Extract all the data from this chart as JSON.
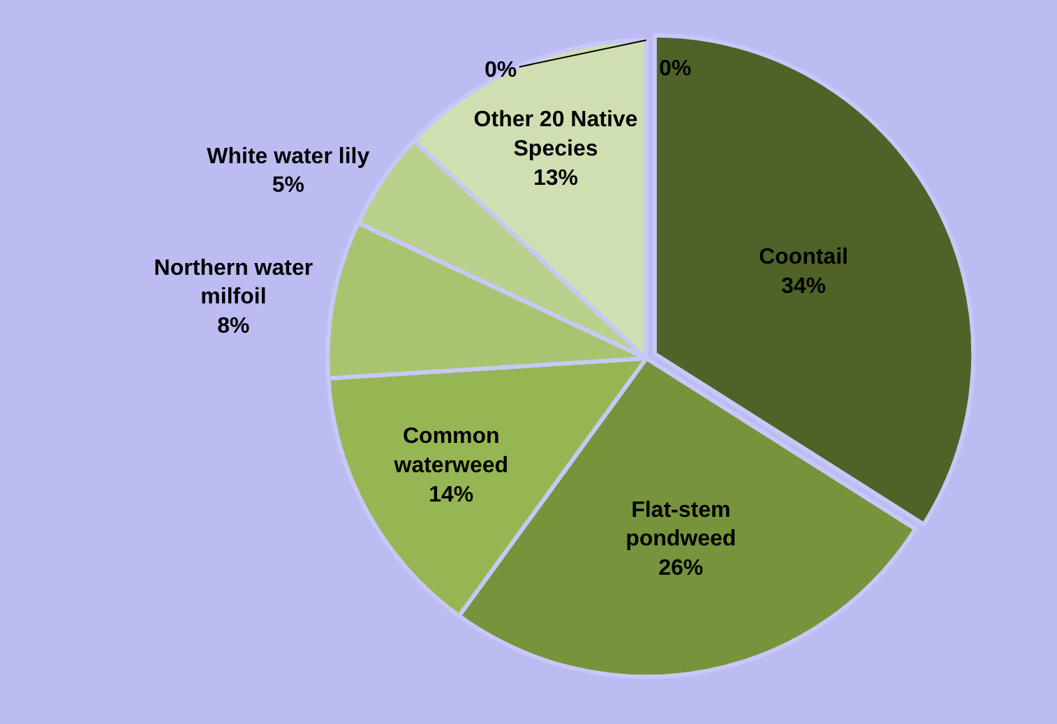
{
  "chart_data": {
    "type": "pie",
    "categories": [
      null,
      "Coontail",
      "Flat-stem\npondweed",
      "Common\nwaterweed",
      "Northern water\nmilfoil",
      "White water lily",
      "Other 20 Native\nSpecies",
      null
    ],
    "values": [
      0,
      34,
      26,
      14,
      8,
      5,
      13,
      0
    ],
    "value_labels": [
      "0%",
      "34%",
      "26%",
      "14%",
      "8%",
      "5%",
      "13%",
      "0%"
    ],
    "colors": [
      "#dfe8cc",
      "#4f6228",
      "#77933c",
      "#96b653",
      "#a9c470",
      "#bad08d",
      "#d0dfb1",
      "#dfe8cc"
    ]
  }
}
